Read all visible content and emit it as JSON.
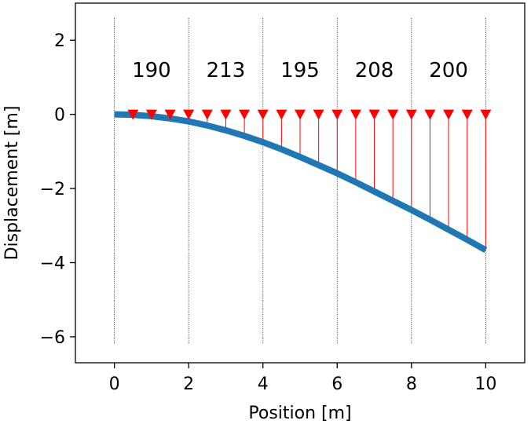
{
  "chart_data": {
    "type": "line",
    "title": "",
    "xlabel": "Position [m]",
    "ylabel": "Displacement [m]",
    "xlim": [
      -1.05,
      11.05
    ],
    "ylim": [
      -6.7,
      3.0
    ],
    "xticks": [
      0,
      2,
      4,
      6,
      8,
      10
    ],
    "yticks": [
      2,
      0,
      -2,
      -4,
      -6
    ],
    "xtick_labels": [
      "0",
      "2",
      "4",
      "6",
      "8",
      "10"
    ],
    "ytick_labels": [
      "2",
      "0",
      "−2",
      "−4",
      "−6"
    ],
    "grid": false,
    "segment_boundaries": [
      0,
      2,
      4,
      6,
      8,
      10
    ],
    "segment_labels": [
      {
        "x": 1,
        "y": 1.2,
        "text": "190"
      },
      {
        "x": 3,
        "y": 1.2,
        "text": "213"
      },
      {
        "x": 5,
        "y": 1.2,
        "text": "195"
      },
      {
        "x": 7,
        "y": 1.2,
        "text": "208"
      },
      {
        "x": 9,
        "y": 1.2,
        "text": "200"
      }
    ],
    "series": [
      {
        "type": "line",
        "color": "#1f77b4",
        "x": [
          0,
          0.5,
          1,
          1.5,
          2,
          2.5,
          3,
          3.5,
          4,
          4.5,
          5,
          5.5,
          6,
          6.5,
          7,
          7.5,
          8,
          8.5,
          9,
          9.5,
          10
        ],
        "y": [
          0,
          -0.012,
          -0.05,
          -0.11,
          -0.19,
          -0.3,
          -0.43,
          -0.58,
          -0.75,
          -0.94,
          -1.15,
          -1.37,
          -1.59,
          -1.83,
          -2.08,
          -2.33,
          -2.58,
          -2.84,
          -3.11,
          -3.38,
          -3.66
        ]
      }
    ],
    "loads": {
      "color": "#ff0000",
      "marker": "triangle-down",
      "x": [
        0.5,
        1,
        1.5,
        2,
        2.5,
        3,
        3.5,
        4,
        4.5,
        5,
        5.5,
        6,
        6.5,
        7,
        7.5,
        8,
        8.5,
        9,
        9.5,
        10
      ],
      "y_top": 0
    }
  }
}
